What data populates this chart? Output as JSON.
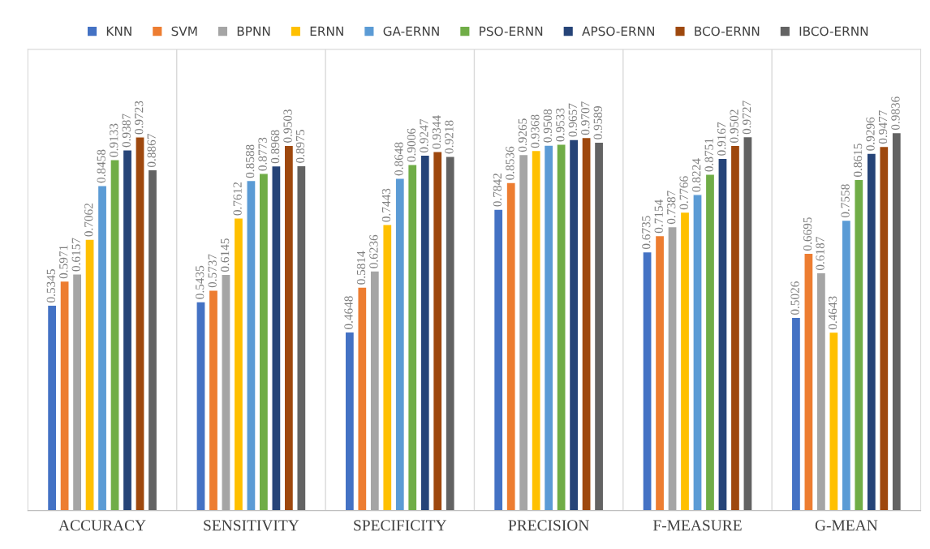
{
  "chart_data": {
    "type": "bar",
    "categories": [
      "ACCURACY",
      "SENSITIVITY",
      "SPECIFICITY",
      "PRECISION",
      "F-MEASURE",
      "G-MEAN"
    ],
    "series": [
      {
        "name": "KNN",
        "color": "#4472c4",
        "values": [
          0.5345,
          0.5435,
          0.4648,
          0.7842,
          0.6735,
          0.5026
        ]
      },
      {
        "name": "SVM",
        "color": "#ed7d31",
        "values": [
          0.5971,
          0.5737,
          0.5814,
          0.8536,
          0.7154,
          0.6695
        ]
      },
      {
        "name": "BPNN",
        "color": "#a5a5a5",
        "values": [
          0.6157,
          0.6145,
          0.6236,
          0.9265,
          0.7387,
          0.6187
        ]
      },
      {
        "name": "ERNN",
        "color": "#ffc000",
        "values": [
          0.7062,
          0.7612,
          0.7443,
          0.9368,
          0.7766,
          0.4643
        ]
      },
      {
        "name": "GA-ERNN",
        "color": "#5b9bd5",
        "values": [
          0.8458,
          0.8588,
          0.8648,
          0.9508,
          0.8224,
          0.7558
        ]
      },
      {
        "name": "PSO-ERNN",
        "color": "#70ad47",
        "values": [
          0.9133,
          0.8773,
          0.9006,
          0.9533,
          0.8751,
          0.8615
        ]
      },
      {
        "name": "APSO-ERNN",
        "color": "#264478",
        "values": [
          0.9387,
          0.8968,
          0.9247,
          0.9657,
          0.9167,
          0.9296
        ]
      },
      {
        "name": "BCO-ERNN",
        "color": "#9e480e",
        "values": [
          0.9723,
          0.9503,
          0.9344,
          0.9707,
          0.9502,
          0.9477
        ]
      },
      {
        "name": "IBCO-ERNN",
        "color": "#636363",
        "values": [
          0.8867,
          0.8975,
          0.9218,
          0.9589,
          0.9727,
          0.9836
        ]
      }
    ],
    "data_labels": true,
    "legend": "top",
    "grid": "x",
    "tick_labels": "x"
  }
}
